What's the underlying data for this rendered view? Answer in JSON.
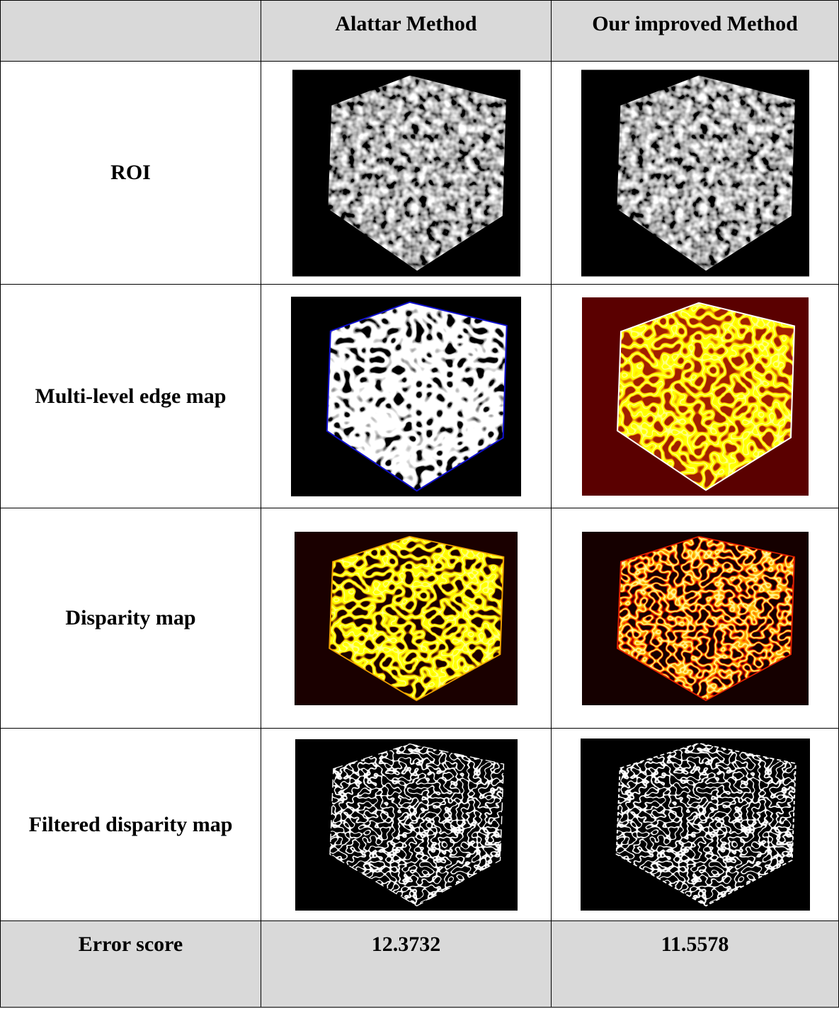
{
  "header": {
    "columns": [
      "Alattar Method",
      "Our improved Method"
    ]
  },
  "rows": [
    {
      "label": "ROI"
    },
    {
      "label": "Multi-level edge map"
    },
    {
      "label": "Disparity map"
    },
    {
      "label": "Filtered disparity map"
    }
  ],
  "error_row": {
    "label": "Error score",
    "values": [
      12.3732,
      11.5578
    ]
  }
}
